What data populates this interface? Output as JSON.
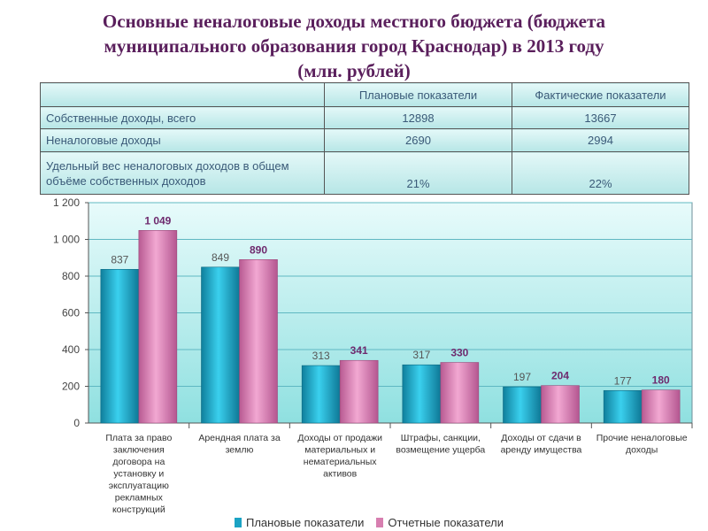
{
  "title": "Основные неналоговые доходы местного бюджета (бюджета муниципального образования город Краснодар) в 2013 году (млн. рублей)",
  "title_lines": [
    "Основные неналоговые доходы местного бюджета (бюджета",
    "муниципального образования город Краснодар) в 2013 году",
    "(млн. рублей)"
  ],
  "table": {
    "headers": [
      "",
      "Плановые показатели",
      "Фактические показатели"
    ],
    "rows": [
      {
        "label": "Собственные доходы, всего",
        "plan": "12898",
        "fact": "13667"
      },
      {
        "label": "Неналоговые доходы",
        "plan": "2690",
        "fact": "2994"
      },
      {
        "label_lines": [
          "Удельный вес неналоговых доходов в общем",
          "объёме собственных доходов"
        ],
        "plan": "21%",
        "fact": "22%"
      }
    ]
  },
  "colors": {
    "plan": "#1ba3c4",
    "fact": "#d77fb0",
    "plan_label": "#555555",
    "fact_label": "#6e2a6e",
    "plot_bg_top": "#e8fbfb",
    "plot_bg_bottom": "#8fe0e0"
  },
  "chart_data": {
    "type": "bar",
    "categories": [
      "Плата за право заключения договора на установку и эксплуатацию рекламных конструкций",
      "Арендная плата за землю",
      "Доходы от продажи материальных и нематериальных активов",
      "Штрафы, санкции, возмещение ущерба",
      "Доходы от сдачи в аренду имущества",
      "Прочие неналоговые доходы"
    ],
    "category_lines": [
      [
        "Плата за право",
        "заключения",
        "договора на",
        "установку и",
        "эксплуатацию",
        "рекламных",
        "конструкций"
      ],
      [
        "Арендная плата за",
        "землю"
      ],
      [
        "Доходы от продажи",
        "материальных и",
        "нематериальных",
        "активов"
      ],
      [
        "Штрафы, санкции,",
        "возмещение ущерба"
      ],
      [
        "Доходы от сдачи в",
        "аренду имущества"
      ],
      [
        "Прочие неналоговые",
        "доходы"
      ]
    ],
    "series": [
      {
        "name": "Плановые показатели",
        "values": [
          837,
          849,
          313,
          317,
          197,
          177
        ],
        "labels": [
          "837",
          "849",
          "313",
          "317",
          "197",
          "177"
        ]
      },
      {
        "name": "Отчетные показатели",
        "values": [
          1049,
          890,
          341,
          330,
          204,
          180
        ],
        "labels": [
          "1 049",
          "890",
          "341",
          "330",
          "204",
          "180"
        ]
      }
    ],
    "ylim": [
      0,
      1200
    ],
    "yticks": [
      0,
      200,
      400,
      600,
      800,
      1000,
      1200
    ],
    "ytick_labels": [
      "0",
      "200",
      "400",
      "600",
      "800",
      "1 000",
      "1 200"
    ],
    "grid": true,
    "legend_position": "bottom"
  }
}
